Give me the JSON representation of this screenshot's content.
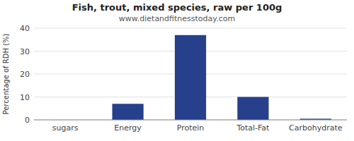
{
  "chart_data": {
    "type": "bar",
    "title": "Fish, trout, mixed species, raw per 100g",
    "subtitle": "www.dietandfitnesstoday.com",
    "categories": [
      "sugars",
      "Energy",
      "Protein",
      "Total-Fat",
      "Carbohydrate"
    ],
    "values": [
      0,
      7,
      37,
      10,
      0.5
    ],
    "color": "#27408B",
    "ylabel": "Percentage of RDH (%)",
    "ylim": [
      0,
      40
    ],
    "yticks": [
      0,
      10,
      20,
      30,
      40
    ],
    "grid": true
  }
}
